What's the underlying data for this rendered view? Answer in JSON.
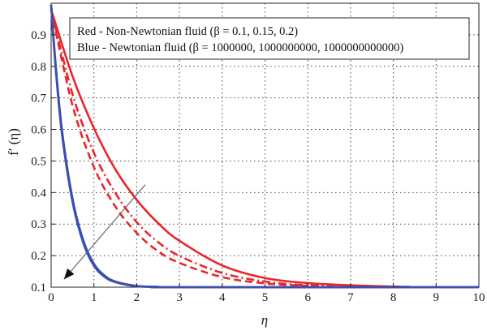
{
  "chart_data": {
    "type": "line",
    "xlabel": "η",
    "ylabel": "f′ (η)",
    "xlim": [
      0,
      10
    ],
    "ylim": [
      0.1,
      1.0
    ],
    "x_ticks": [
      "0",
      "1",
      "2",
      "3",
      "4",
      "5",
      "6",
      "7",
      "8",
      "9",
      "10"
    ],
    "y_ticks": [
      "0.1",
      "0.2",
      "0.3",
      "0.4",
      "0.5",
      "0.6",
      "0.7",
      "0.8",
      "0.9"
    ],
    "grid": true,
    "grid_style": "dotted",
    "legend_placement": "top-right",
    "legend": [
      "Red - Non-Newtonian fluid (β = 0.1, 0.15, 0.2)",
      "Blue - Newtonian fluid (β = 1000000, 1000000000, 1000000000000)"
    ],
    "colors": {
      "red": "#e8262b",
      "blue": "#3a4fb0",
      "arrow": "#666666"
    },
    "series": [
      {
        "color": "red",
        "style": "solid",
        "x": [
          0,
          0.5,
          1,
          1.5,
          2,
          2.5,
          3,
          4,
          5,
          6,
          7,
          8,
          8.4
        ],
        "y": [
          0.98,
          0.769,
          0.604,
          0.474,
          0.377,
          0.303,
          0.247,
          0.169,
          0.129,
          0.113,
          0.106,
          0.102,
          0.101
        ]
      },
      {
        "color": "red",
        "style": "dashdot",
        "x": [
          0,
          0.5,
          1,
          1.5,
          2,
          2.5,
          3,
          4,
          5,
          6,
          7
        ],
        "y": [
          0.98,
          0.712,
          0.526,
          0.399,
          0.306,
          0.243,
          0.199,
          0.145,
          0.118,
          0.106,
          0.102
        ]
      },
      {
        "color": "red",
        "style": "dashed",
        "x": [
          0,
          0.5,
          1,
          1.5,
          2,
          2.5,
          3,
          4,
          5,
          6
        ],
        "y": [
          0.98,
          0.676,
          0.481,
          0.356,
          0.272,
          0.214,
          0.177,
          0.132,
          0.112,
          0.104
        ]
      },
      {
        "color": "blue",
        "style": "solid",
        "x": [
          0,
          0.1,
          0.25,
          0.5,
          0.75,
          1,
          1.25,
          1.5,
          2,
          2.5,
          3,
          10
        ],
        "y": [
          0.995,
          0.815,
          0.602,
          0.381,
          0.249,
          0.174,
          0.137,
          0.118,
          0.104,
          0.101,
          0.1,
          0.1
        ]
      },
      {
        "color": "blue",
        "style": "solid",
        "x": [
          0,
          0.1,
          0.25,
          0.5,
          0.75,
          1,
          1.25,
          1.5,
          2,
          2.5,
          3,
          10
        ],
        "y": [
          0.995,
          0.81,
          0.596,
          0.376,
          0.245,
          0.171,
          0.135,
          0.117,
          0.103,
          0.101,
          0.1,
          0.1
        ]
      },
      {
        "color": "blue",
        "style": "solid",
        "x": [
          0,
          0.1,
          0.25,
          0.5,
          0.75,
          1,
          1.25,
          1.5,
          2,
          2.5,
          3,
          10
        ],
        "y": [
          0.995,
          0.805,
          0.59,
          0.371,
          0.241,
          0.168,
          0.133,
          0.116,
          0.103,
          0.101,
          0.1,
          0.1
        ]
      }
    ],
    "arrow": {
      "from": [
        2.2,
        0.425
      ],
      "to": [
        0.3,
        0.125
      ]
    }
  }
}
